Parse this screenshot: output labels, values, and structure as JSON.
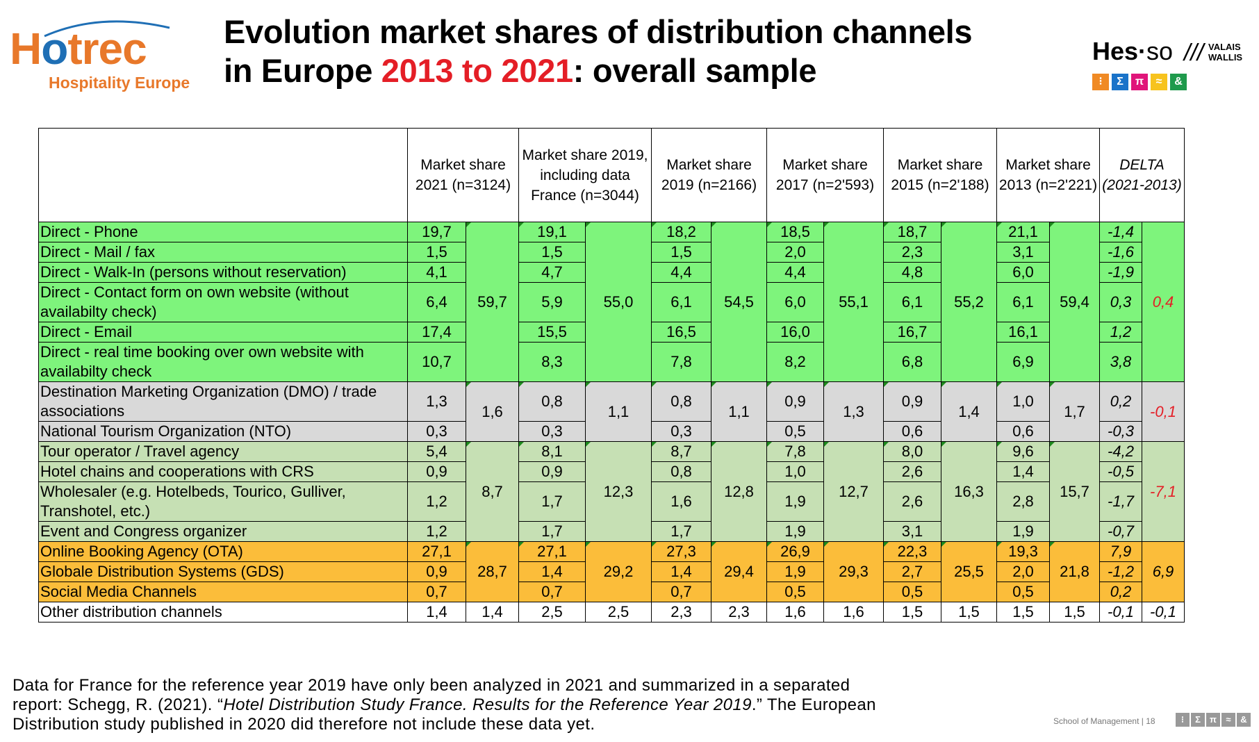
{
  "logo_left": {
    "word": "Hotrec",
    "subtitle": "Hospitality Europe"
  },
  "title": {
    "line1": "Evolution market shares of distribution channels",
    "line2_pre": "in Europe ",
    "line2_red": "2013 to 2021",
    "line2_post": ": overall sample"
  },
  "logo_right": {
    "name": "Hes",
    "dot": "·",
    "so": "so",
    "slashes": "///",
    "region1": "VALAIS",
    "region2": "WALLIS",
    "icons": [
      {
        "glyph": "⁝",
        "color": "#f08a24"
      },
      {
        "glyph": "Σ",
        "color": "#1a73c9"
      },
      {
        "glyph": "π",
        "color": "#e0157a"
      },
      {
        "glyph": "≈",
        "color": "#f7c31e"
      },
      {
        "glyph": "&",
        "color": "#1f9a4c"
      }
    ]
  },
  "table": {
    "headers": [
      "",
      "Market share 2021 (n=3124)",
      "Market share 2019, including data France (n=3044)",
      "Market share 2019 (n=2166)",
      "Market share 2017 (n=2'593)",
      "Market share 2015 (n=2'188)",
      "Market share 2013 (n=2'221)",
      "DELTA (2021-2013)"
    ],
    "groups": {
      "direct": {
        "rows": [
          {
            "label": "Direct - Phone",
            "v": [
              "19,7",
              "19,1",
              "18,2",
              "18,5",
              "18,7",
              "21,1"
            ],
            "delta": "-1,4"
          },
          {
            "label": "Direct - Mail / fax",
            "v": [
              "1,5",
              "1,5",
              "1,5",
              "2,0",
              "2,3",
              "3,1"
            ],
            "delta": "-1,6"
          },
          {
            "label": "Direct - Walk-In (persons without reservation)",
            "v": [
              "4,1",
              "4,7",
              "4,4",
              "4,4",
              "4,8",
              "6,0"
            ],
            "delta": "-1,9"
          },
          {
            "label": "Direct - Contact form on own website (without availabilty check)",
            "v": [
              "6,4",
              "5,9",
              "6,1",
              "6,0",
              "6,1",
              "6,1"
            ],
            "delta": "0,3"
          },
          {
            "label": "Direct - Email",
            "v": [
              "17,4",
              "15,5",
              "16,5",
              "16,0",
              "16,7",
              "16,1"
            ],
            "delta": "1,2"
          },
          {
            "label": "Direct - real time booking over own website with availabilty check",
            "v": [
              "10,7",
              "8,3",
              "7,8",
              "8,2",
              "6,8",
              "6,9"
            ],
            "delta": "3,8"
          }
        ],
        "subtotals": [
          "59,7",
          "55,0",
          "54,5",
          "55,1",
          "55,2",
          "59,4"
        ],
        "delta_total": "0,4"
      },
      "dmo": {
        "rows": [
          {
            "label": "Destination Marketing Organization (DMO) / trade associations",
            "v": [
              "1,3",
              "0,8",
              "0,8",
              "0,9",
              "0,9",
              "1,0"
            ],
            "delta": "0,2"
          },
          {
            "label": "National Tourism Organization (NTO)",
            "v": [
              "0,3",
              "0,3",
              "0,3",
              "0,5",
              "0,6",
              "0,6"
            ],
            "delta": "-0,3"
          }
        ],
        "subtotals": [
          "1,6",
          "1,1",
          "1,1",
          "1,3",
          "1,4",
          "1,7"
        ],
        "delta_total": "-0,1"
      },
      "intermediaries": {
        "rows": [
          {
            "label": "Tour operator / Travel agency",
            "v": [
              "5,4",
              "8,1",
              "8,7",
              "7,8",
              "8,0",
              "9,6"
            ],
            "delta": "-4,2"
          },
          {
            "label": "Hotel chains and cooperations with CRS",
            "v": [
              "0,9",
              "0,9",
              "0,8",
              "1,0",
              "2,6",
              "1,4"
            ],
            "delta": "-0,5"
          },
          {
            "label": "Wholesaler (e.g. Hotelbeds, Tourico, Gulliver, Transhotel, etc.)",
            "v": [
              "1,2",
              "1,7",
              "1,6",
              "1,9",
              "2,6",
              "2,8"
            ],
            "delta": "-1,7"
          },
          {
            "label": "Event and Congress organizer",
            "v": [
              "1,2",
              "1,7",
              "1,7",
              "1,9",
              "3,1",
              "1,9"
            ],
            "delta": "-0,7"
          }
        ],
        "subtotals": [
          "8,7",
          "12,3",
          "12,8",
          "12,7",
          "16,3",
          "15,7"
        ],
        "delta_total": "-7,1"
      },
      "online": {
        "rows": [
          {
            "label": "Online Booking Agency (OTA)",
            "v": [
              "27,1",
              "27,1",
              "27,3",
              "26,9",
              "22,3",
              "19,3"
            ],
            "delta": "7,9"
          },
          {
            "label": "Globale Distribution Systems (GDS)",
            "v": [
              "0,9",
              "1,4",
              "1,4",
              "1,9",
              "2,7",
              "2,0"
            ],
            "delta": "-1,2"
          },
          {
            "label": "Social Media Channels",
            "v": [
              "0,7",
              "0,7",
              "0,7",
              "0,5",
              "0,5",
              "0,5"
            ],
            "delta": "0,2"
          }
        ],
        "subtotals": [
          "28,7",
          "29,2",
          "29,4",
          "29,3",
          "25,5",
          "21,8"
        ],
        "delta_total": "6,9"
      },
      "other": {
        "label": "Other distribution channels",
        "v": [
          "1,4",
          "2,5",
          "2,3",
          "1,6",
          "1,5",
          "1,5"
        ],
        "subtotals": [
          "1,4",
          "2,5",
          "2,3",
          "1,6",
          "1,5",
          "1,5"
        ],
        "delta": "-0,1",
        "delta_total": "-0,1"
      }
    }
  },
  "footnote": {
    "line1": "Data for France for the reference year 2019 have only been analyzed in 2021 and summarized in a separated",
    "line2_pre": "report: Schegg, R. (2021). “",
    "line2_ital": "Hotel Distribution Study France. Results for the Reference Year 2019",
    "line2_post": ".” The European",
    "line3": "Distribution study published in 2020 did therefore not include these data yet."
  },
  "footer": {
    "text": "School of Management  |  18",
    "icons": [
      "⁝",
      "Σ",
      "π",
      "≈",
      "&"
    ]
  }
}
